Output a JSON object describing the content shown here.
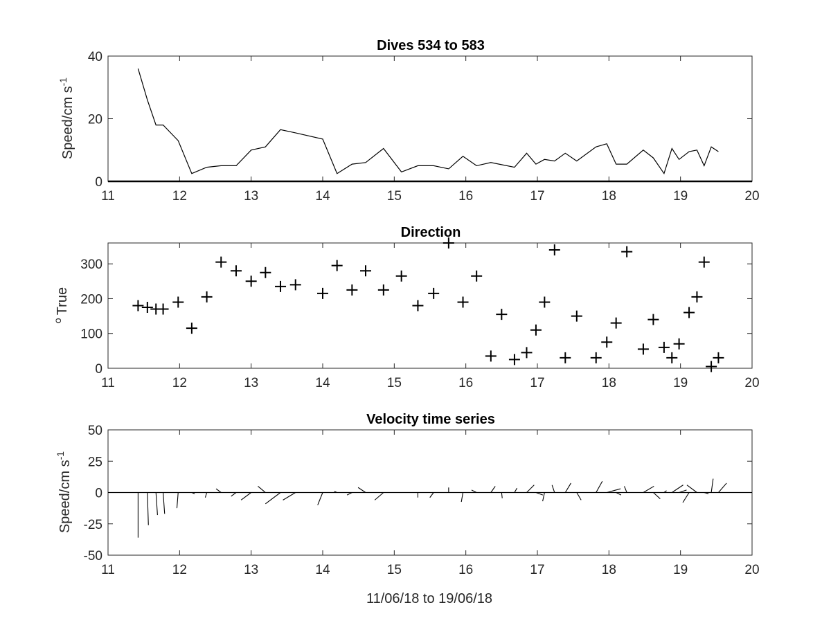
{
  "chart_data": [
    {
      "type": "line",
      "title": "Dives 534 to 583",
      "xlabel": "",
      "ylabel": "Speed/cm s",
      "ylabel_superscript": "-1",
      "xlim": [
        11,
        20
      ],
      "ylim": [
        0,
        40
      ],
      "xticks": [
        "11",
        "12",
        "13",
        "14",
        "15",
        "16",
        "17",
        "18",
        "19",
        "20"
      ],
      "yticks": [
        "0",
        "20",
        "40"
      ],
      "grid": false,
      "series": [
        {
          "color": "#000000",
          "x": [
            11.42,
            11.55,
            11.67,
            11.77,
            11.98,
            12.17,
            12.38,
            12.58,
            12.79,
            13.0,
            13.2,
            13.41,
            13.62,
            14.0,
            14.2,
            14.41,
            14.6,
            14.85,
            15.1,
            15.33,
            15.55,
            15.76,
            15.96,
            16.15,
            16.35,
            16.68,
            16.85,
            16.98,
            17.1,
            17.24,
            17.39,
            17.55,
            17.82,
            17.97,
            18.1,
            18.25,
            18.48,
            18.62,
            18.77,
            18.88,
            18.98,
            19.12,
            19.23,
            19.33,
            19.43,
            19.53
          ],
          "y": [
            36,
            26,
            18,
            18,
            13,
            2.5,
            4.5,
            5,
            5,
            10,
            11,
            16.5,
            15.5,
            13.5,
            2.5,
            5.5,
            6,
            10.5,
            3,
            5,
            5,
            4,
            8,
            5,
            6,
            4.5,
            9,
            5.5,
            7,
            6.5,
            9,
            6.5,
            11,
            12,
            5.5,
            5.5,
            10,
            7.5,
            2.5,
            10.5,
            7,
            9.5,
            10,
            5,
            11,
            9.5
          ]
        }
      ]
    },
    {
      "type": "scatter",
      "title": "Direction",
      "xlabel": "",
      "ylabel": "True",
      "ylabel_superscript": "o",
      "xlim": [
        11,
        20
      ],
      "ylim": [
        0,
        360
      ],
      "xticks": [
        "11",
        "12",
        "13",
        "14",
        "15",
        "16",
        "17",
        "18",
        "19",
        "20"
      ],
      "yticks": [
        "0",
        "100",
        "200",
        "300"
      ],
      "marker": "+",
      "grid": false,
      "series": [
        {
          "color": "#000000",
          "x": [
            11.42,
            11.55,
            11.67,
            11.77,
            11.98,
            12.17,
            12.38,
            12.58,
            12.79,
            13.0,
            13.2,
            13.41,
            13.62,
            14.0,
            14.2,
            14.41,
            14.6,
            14.85,
            15.1,
            15.33,
            15.55,
            15.76,
            15.96,
            16.15,
            16.35,
            16.5,
            16.68,
            16.85,
            16.98,
            17.1,
            17.24,
            17.39,
            17.55,
            17.82,
            17.97,
            18.1,
            18.25,
            18.48,
            18.62,
            18.77,
            18.88,
            18.98,
            19.12,
            19.23,
            19.33,
            19.43,
            19.53
          ],
          "y": [
            180,
            175,
            170,
            170,
            190,
            115,
            205,
            305,
            280,
            250,
            275,
            235,
            240,
            215,
            295,
            225,
            280,
            225,
            265,
            180,
            215,
            360,
            190,
            265,
            35,
            155,
            25,
            45,
            110,
            190,
            340,
            30,
            150,
            30,
            75,
            130,
            335,
            55,
            140,
            60,
            30,
            70,
            160,
            205,
            305,
            5,
            30
          ]
        }
      ]
    },
    {
      "type": "quiver",
      "title": "Velocity time series",
      "xlabel": "11/06/18 to 19/06/18",
      "ylabel": "Speed/cm s",
      "ylabel_superscript": "-1",
      "xlim": [
        11,
        20
      ],
      "ylim": [
        -50,
        50
      ],
      "xticks": [
        "11",
        "12",
        "13",
        "14",
        "15",
        "16",
        "17",
        "18",
        "19",
        "20"
      ],
      "yticks": [
        "-50",
        "-25",
        "0",
        "25",
        "50"
      ],
      "grid": false,
      "zero_line": true,
      "sticks": [
        {
          "x": 11.42,
          "u": 0,
          "v": -36
        },
        {
          "x": 11.55,
          "u": 0.8,
          "v": -26
        },
        {
          "x": 11.67,
          "u": 1.2,
          "v": -18
        },
        {
          "x": 11.77,
          "u": 1.2,
          "v": -17
        },
        {
          "x": 11.98,
          "u": -1,
          "v": -12.5
        },
        {
          "x": 12.17,
          "u": 2.3,
          "v": -1
        },
        {
          "x": 12.38,
          "u": -1.2,
          "v": -4
        },
        {
          "x": 12.58,
          "u": -4,
          "v": 3
        },
        {
          "x": 12.79,
          "u": -4,
          "v": -3
        },
        {
          "x": 13.0,
          "u": -8,
          "v": -6
        },
        {
          "x": 13.2,
          "u": -6,
          "v": 5
        },
        {
          "x": 13.41,
          "u": -12,
          "v": -9
        },
        {
          "x": 13.62,
          "u": -10,
          "v": -6
        },
        {
          "x": 14.0,
          "u": -4,
          "v": -10
        },
        {
          "x": 14.2,
          "u": -2.2,
          "v": 1
        },
        {
          "x": 14.41,
          "u": -4,
          "v": -2
        },
        {
          "x": 14.6,
          "u": -6,
          "v": 4
        },
        {
          "x": 14.85,
          "u": -7,
          "v": -6
        },
        {
          "x": 15.33,
          "u": 0,
          "v": -4
        },
        {
          "x": 15.55,
          "u": -3,
          "v": -4
        },
        {
          "x": 15.76,
          "u": 0,
          "v": 4
        },
        {
          "x": 15.96,
          "u": -1.3,
          "v": -7.5
        },
        {
          "x": 16.15,
          "u": -4,
          "v": 2
        },
        {
          "x": 16.35,
          "u": 3.5,
          "v": 5
        },
        {
          "x": 16.5,
          "u": 0.5,
          "v": -4.5
        },
        {
          "x": 16.68,
          "u": 2,
          "v": 3.5
        },
        {
          "x": 16.85,
          "u": 6,
          "v": 6
        },
        {
          "x": 16.98,
          "u": 5.5,
          "v": -2
        },
        {
          "x": 17.1,
          "u": -1.5,
          "v": -7
        },
        {
          "x": 17.24,
          "u": -2,
          "v": 6
        },
        {
          "x": 17.39,
          "u": 4.5,
          "v": 7.5
        },
        {
          "x": 17.55,
          "u": 3.5,
          "v": -6
        },
        {
          "x": 17.82,
          "u": 5,
          "v": 9
        },
        {
          "x": 17.97,
          "u": 11,
          "v": 3
        },
        {
          "x": 18.1,
          "u": 4,
          "v": -2
        },
        {
          "x": 18.25,
          "u": -2,
          "v": 5
        },
        {
          "x": 18.48,
          "u": 8.5,
          "v": 5
        },
        {
          "x": 18.62,
          "u": 5.5,
          "v": -5
        },
        {
          "x": 18.77,
          "u": 2,
          "v": 1.5
        },
        {
          "x": 18.88,
          "u": 9,
          "v": 6
        },
        {
          "x": 18.98,
          "u": 6,
          "v": 2
        },
        {
          "x": 19.12,
          "u": -5,
          "v": -8
        },
        {
          "x": 19.23,
          "u": -8,
          "v": 6
        },
        {
          "x": 19.33,
          "u": 3.5,
          "v": -1
        },
        {
          "x": 19.43,
          "u": 1.5,
          "v": 11
        },
        {
          "x": 19.53,
          "u": 6.5,
          "v": 7.5
        }
      ]
    }
  ]
}
